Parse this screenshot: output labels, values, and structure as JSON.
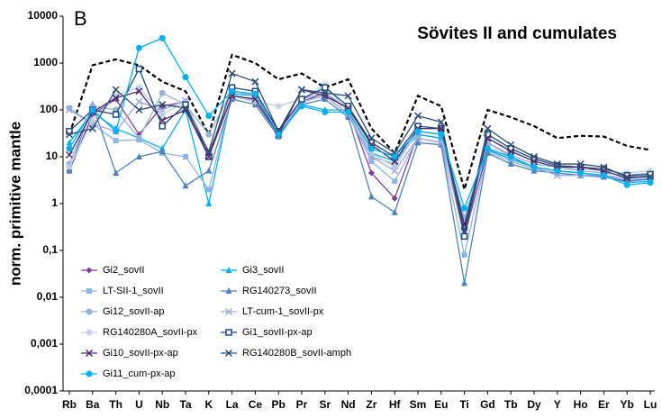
{
  "chart_data": {
    "type": "line",
    "panel_label": "B",
    "title": "Sövites II and cumulates",
    "y_label": "norm. primitive mantle",
    "y_scale": "log",
    "legend": "lower left",
    "categories": [
      "Rb",
      "Ba",
      "Th",
      "U",
      "Nb",
      "Ta",
      "K",
      "La",
      "Ce",
      "Pb",
      "Pr",
      "Sr",
      "Nd",
      "Zr",
      "Hf",
      "Sm",
      "Eu",
      "Ti",
      "Gd",
      "Tb",
      "Dy",
      "Y",
      "Ho",
      "Er",
      "Yb",
      "Lu"
    ],
    "ylim": [
      0.0001,
      10000
    ],
    "yticks": [
      {
        "value": 0.0001,
        "label": "0,0001"
      },
      {
        "value": 0.001,
        "label": "0,001"
      },
      {
        "value": 0.01,
        "label": "0,01"
      },
      {
        "value": 0.1,
        "label": "0,1"
      },
      1,
      10,
      100,
      1000,
      10000
    ],
    "series": [
      {
        "color": "#000000",
        "dashed": true,
        "values": [
          30,
          900,
          1200,
          900,
          400,
          250,
          30,
          1500,
          1000,
          450,
          600,
          300,
          450,
          40,
          12,
          200,
          120,
          2,
          100,
          70,
          45,
          25,
          28,
          27,
          17,
          14
        ]
      },
      {
        "name": "Gi2_sovII",
        "color": "#7b3f98",
        "marker": "diamond",
        "values": [
          5,
          80,
          170,
          30,
          120,
          150,
          12,
          200,
          150,
          30,
          150,
          230,
          100,
          4.5,
          1.3,
          30,
          25,
          0.2,
          14,
          9,
          6,
          5,
          4.5,
          4,
          3,
          3.5
        ]
      },
      {
        "name": "Gi3_sovII",
        "color": "#00b0f0",
        "marker": "triangle",
        "values": [
          20,
          90,
          40,
          25,
          15,
          100,
          1,
          220,
          200,
          30,
          130,
          100,
          100,
          12,
          8,
          30,
          25,
          0.5,
          14,
          9,
          6,
          5,
          4.5,
          4,
          2.8,
          3
        ]
      },
      {
        "name": "LT-SII-1_sovII",
        "color": "#8eb4e3",
        "marker": "square",
        "values": [
          110,
          50,
          22,
          23,
          12,
          10,
          2,
          200,
          170,
          30,
          150,
          200,
          80,
          8,
          3,
          25,
          20,
          0.08,
          13,
          8,
          5.5,
          4.5,
          4,
          3.8,
          3.2,
          3.5
        ]
      },
      {
        "name": "RG140273_sovII",
        "color": "#4f81bd",
        "marker": "triangle",
        "values": [
          5,
          130,
          4.5,
          10,
          13,
          2.4,
          5,
          170,
          130,
          27,
          130,
          170,
          70,
          1.4,
          0.65,
          20,
          18,
          0.02,
          12,
          7,
          5,
          4.5,
          4,
          3.7,
          3,
          3.3
        ]
      },
      {
        "name": "Gi12_sovII-ap",
        "color": "#95b3d7",
        "marker": "circle",
        "values": [
          7,
          120,
          100,
          25,
          230,
          130,
          30,
          250,
          200,
          30,
          170,
          230,
          110,
          10,
          7,
          35,
          30,
          0.5,
          20,
          11,
          7,
          6,
          5,
          4.5,
          4,
          4.5
        ]
      },
      {
        "name": "LT-cum-1_sovII-px",
        "color": "#a0a8d8",
        "marker": "x",
        "values": [
          100,
          50,
          35,
          150,
          100,
          160,
          10,
          200,
          160,
          30,
          150,
          200,
          80,
          10,
          5,
          25,
          20,
          0.3,
          20,
          10,
          6,
          4,
          4,
          4,
          3.5,
          4
        ]
      },
      {
        "name": "RG140280A_sovII-px",
        "color": "#b9cde5",
        "marker": "star",
        "values": [
          6,
          60,
          200,
          300,
          80,
          150,
          10,
          200,
          150,
          120,
          170,
          350,
          90,
          12,
          6,
          35,
          30,
          0.2,
          25,
          14,
          8,
          6,
          5.5,
          5,
          4.5,
          5
        ]
      },
      {
        "name": "Gi1_sovII-px-ap",
        "color": "#1f497d",
        "marker": "open-square",
        "values": [
          35,
          100,
          80,
          750,
          45,
          130,
          10,
          300,
          250,
          35,
          170,
          300,
          120,
          20,
          10,
          45,
          40,
          0.2,
          30,
          15,
          9,
          6.5,
          6,
          5.5,
          4,
          4.2
        ]
      },
      {
        "name": "Gi10_sovII-px-ap",
        "color": "#4b2c6b",
        "marker": "x",
        "values": [
          11,
          90,
          180,
          250,
          60,
          100,
          10,
          200,
          170,
          30,
          270,
          200,
          110,
          18,
          8,
          40,
          40,
          0.35,
          25,
          13,
          8,
          6,
          6,
          5,
          3.5,
          3.8
        ]
      },
      {
        "name": "RG140280B_sovII-amph",
        "color": "#2c4d75",
        "marker": "x",
        "values": [
          30,
          40,
          270,
          100,
          130,
          110,
          13,
          600,
          400,
          35,
          270,
          230,
          200,
          25,
          12,
          75,
          55,
          0.25,
          40,
          18,
          10,
          7,
          7,
          6,
          3.7,
          3.8
        ]
      },
      {
        "name": "Gi11_cum-px-ap",
        "color": "#00b0f0",
        "marker": "circle",
        "values": [
          15,
          100,
          35,
          2100,
          3400,
          500,
          75,
          250,
          220,
          30,
          120,
          90,
          90,
          15,
          10,
          35,
          30,
          0.8,
          15,
          10,
          6,
          5,
          4.5,
          4,
          2.5,
          2.8
        ]
      }
    ]
  }
}
